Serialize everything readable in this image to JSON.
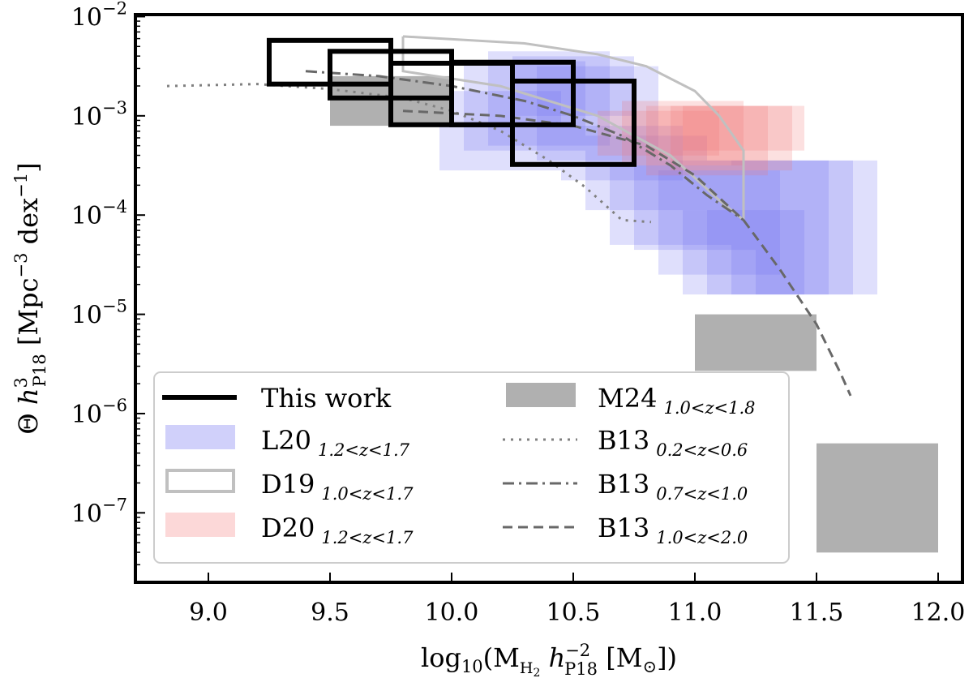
{
  "chart_data": {
    "type": "scatter",
    "title": "",
    "xlabel": "log10(M_H2 h_P18^-2 [M_sun])",
    "ylabel": "Theta h_P18^3 [Mpc^-3 dex^-1]",
    "xlim": [
      8.7,
      12.1
    ],
    "ylim_log10": [
      -7.7,
      -1.98
    ],
    "xticks": [
      "9.0",
      "9.5",
      "10.0",
      "10.5",
      "11.0",
      "11.5",
      "12.0"
    ],
    "yticks": [
      {
        "base": "10",
        "exp": "−2",
        "value": -2
      },
      {
        "base": "10",
        "exp": "−3",
        "value": -3
      },
      {
        "base": "10",
        "exp": "−4",
        "value": -4
      },
      {
        "base": "10",
        "exp": "−5",
        "value": -5
      },
      {
        "base": "10",
        "exp": "−6",
        "value": -6
      },
      {
        "base": "10",
        "exp": "−7",
        "value": -7
      }
    ],
    "series": [
      {
        "name": "This work",
        "kind": "open-box",
        "color": "#000000",
        "boxes": [
          {
            "x0": 9.25,
            "x1": 9.75,
            "logy0": -2.68,
            "logy1": -2.24
          },
          {
            "x0": 9.5,
            "x1": 10.0,
            "logy0": -2.82,
            "logy1": -2.35
          },
          {
            "x0": 9.75,
            "x1": 10.25,
            "logy0": -3.09,
            "logy1": -2.47
          },
          {
            "x0": 10.0,
            "x1": 10.5,
            "logy0": -3.09,
            "logy1": -2.46
          },
          {
            "x0": 10.25,
            "x1": 10.75,
            "logy0": -3.49,
            "logy1": -2.65
          }
        ]
      },
      {
        "name": "L20",
        "kind": "filled-box",
        "color": "#6f6ff0",
        "boxes": [
          {
            "x0": 9.95,
            "x1": 10.45,
            "logy0": -3.55,
            "logy1": -2.75
          },
          {
            "x0": 10.05,
            "x1": 10.55,
            "logy0": -3.35,
            "logy1": -2.45
          },
          {
            "x0": 10.15,
            "x1": 10.65,
            "logy0": -3.3,
            "logy1": -2.35
          },
          {
            "x0": 10.25,
            "x1": 10.75,
            "logy0": -3.0,
            "logy1": -2.4
          },
          {
            "x0": 10.35,
            "x1": 10.85,
            "logy0": -3.45,
            "logy1": -2.5
          },
          {
            "x0": 10.45,
            "x1": 10.95,
            "logy0": -3.65,
            "logy1": -3.1
          },
          {
            "x0": 10.55,
            "x1": 11.05,
            "logy0": -3.95,
            "logy1": -3.2
          },
          {
            "x0": 10.65,
            "x1": 11.15,
            "logy0": -4.3,
            "logy1": -3.5
          },
          {
            "x0": 10.75,
            "x1": 11.25,
            "logy0": -4.35,
            "logy1": -3.45
          },
          {
            "x0": 10.85,
            "x1": 11.35,
            "logy0": -4.6,
            "logy1": -3.55
          },
          {
            "x0": 10.95,
            "x1": 11.45,
            "logy0": -4.8,
            "logy1": -3.95
          },
          {
            "x0": 11.05,
            "x1": 11.55,
            "logy0": -4.8,
            "logy1": -3.45
          },
          {
            "x0": 11.15,
            "x1": 11.65,
            "logy0": -4.8,
            "logy1": -3.45
          },
          {
            "x0": 11.25,
            "x1": 11.75,
            "logy0": -4.8,
            "logy1": -3.45
          }
        ]
      },
      {
        "name": "D20",
        "kind": "filled-box",
        "color": "#f07070",
        "boxes": [
          {
            "x0": 10.6,
            "x1": 11.1,
            "logy0": -3.4,
            "logy1": -2.95
          },
          {
            "x0": 10.7,
            "x1": 11.2,
            "logy0": -3.5,
            "logy1": -2.85
          },
          {
            "x0": 10.8,
            "x1": 11.3,
            "logy0": -3.6,
            "logy1": -2.9
          },
          {
            "x0": 10.9,
            "x1": 11.4,
            "logy0": -3.55,
            "logy1": -2.9
          },
          {
            "x0": 10.95,
            "x1": 11.45,
            "logy0": -3.35,
            "logy1": -2.9
          }
        ]
      },
      {
        "name": "D19",
        "kind": "band-outline",
        "color": "#c0c0c0",
        "x": [
          9.8,
          10.3,
          10.6,
          10.8,
          11.0,
          11.1,
          11.2,
          11.2,
          11.1,
          10.9,
          10.6,
          10.2,
          9.8,
          9.8
        ],
        "logy": [
          -2.2,
          -2.27,
          -2.38,
          -2.5,
          -2.75,
          -3.0,
          -3.35,
          -4.05,
          -3.85,
          -3.4,
          -3.0,
          -2.7,
          -2.55,
          -2.2
        ]
      },
      {
        "name": "M24",
        "kind": "filled-box",
        "color": "#b0b0b0",
        "boxes": [
          {
            "x0": 9.5,
            "x1": 10.0,
            "logy0": -3.1,
            "logy1": -2.6
          },
          {
            "x0": 11.0,
            "x1": 11.5,
            "logy0": -5.57,
            "logy1": -5.0
          },
          {
            "x0": 11.5,
            "x1": 12.0,
            "logy0": -7.4,
            "logy1": -6.3
          }
        ]
      },
      {
        "name": "B13 0.2<z<0.6",
        "kind": "line",
        "dash": "dotted",
        "color": "#808080",
        "x": [
          8.83,
          9.2,
          9.5,
          9.8,
          10.0,
          10.2,
          10.4,
          10.55,
          10.7,
          10.82
        ],
        "logy": [
          -2.7,
          -2.68,
          -2.73,
          -2.82,
          -2.95,
          -3.15,
          -3.45,
          -3.72,
          -4.05,
          -4.07
        ]
      },
      {
        "name": "B13 0.7<z<1.0",
        "kind": "line",
        "dash": "dashdot",
        "color": "#686868",
        "x": [
          9.4,
          9.7,
          10.0,
          10.3,
          10.5,
          10.7,
          10.9,
          11.05,
          11.2
        ],
        "logy": [
          -2.55,
          -2.6,
          -2.7,
          -2.85,
          -3.0,
          -3.2,
          -3.5,
          -3.8,
          -4.05
        ]
      },
      {
        "name": "B13 1.0<z<2.0",
        "kind": "line",
        "dash": "dashed",
        "color": "#686868",
        "x": [
          9.8,
          10.2,
          10.5,
          10.8,
          11.0,
          11.2,
          11.35,
          11.5,
          11.6,
          11.64
        ],
        "logy": [
          -2.95,
          -3.0,
          -3.1,
          -3.3,
          -3.6,
          -4.05,
          -4.55,
          -5.1,
          -5.6,
          -5.82
        ]
      }
    ],
    "legend": {
      "position": "lower-left",
      "entries": [
        {
          "label": "This work",
          "sub": "",
          "swatch": "thick-line",
          "color": "#000000"
        },
        {
          "label": "L20",
          "sub": "1.2<z<1.7",
          "swatch": "filled-box",
          "color": "#d0d0fa"
        },
        {
          "label": "D19",
          "sub": "1.0<z<1.7",
          "swatch": "open-box",
          "color": "#c0c0c0"
        },
        {
          "label": "D20",
          "sub": "1.2<z<1.7",
          "swatch": "filled-box",
          "color": "#fcd8d8"
        },
        {
          "label": "M24",
          "sub": "1.0<z<1.8",
          "swatch": "filled-box",
          "color": "#b0b0b0"
        },
        {
          "label": "B13",
          "sub": "0.2<z<0.6",
          "swatch": "dotted",
          "color": "#808080"
        },
        {
          "label": "B13",
          "sub": "0.7<z<1.0",
          "swatch": "dashdot",
          "color": "#686868"
        },
        {
          "label": "B13",
          "sub": "1.0<z<2.0",
          "swatch": "dashed",
          "color": "#686868"
        }
      ]
    }
  }
}
